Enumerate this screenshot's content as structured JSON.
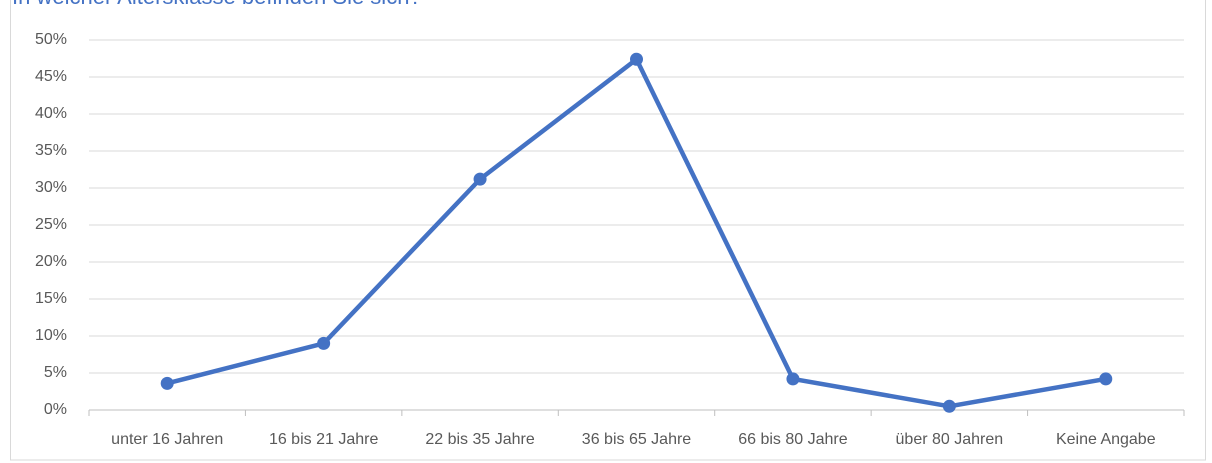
{
  "chart_data": {
    "type": "line",
    "title": "In welcher Altersklasse befinden Sie sich?",
    "categories": [
      "unter 16 Jahren",
      "16 bis 21 Jahre",
      "22 bis 35 Jahre",
      "36 bis 65 Jahre",
      "66 bis 80 Jahre",
      "über 80 Jahren",
      "Keine Angabe"
    ],
    "series": [
      {
        "color": "#4472c4",
        "values": [
          3.6,
          9,
          31.2,
          47.4,
          4.2,
          0.5,
          4.2
        ]
      }
    ],
    "ylim": [
      0,
      50
    ],
    "yticks": [
      {
        "value": 0,
        "label": "0%"
      },
      {
        "value": 5,
        "label": "5%"
      },
      {
        "value": 10,
        "label": "10%"
      },
      {
        "value": 15,
        "label": "15%"
      },
      {
        "value": 20,
        "label": "20%"
      },
      {
        "value": 25,
        "label": "25%"
      },
      {
        "value": 30,
        "label": "30%"
      },
      {
        "value": 35,
        "label": "35%"
      },
      {
        "value": 40,
        "label": "40%"
      },
      {
        "value": 45,
        "label": "45%"
      },
      {
        "value": 50,
        "label": "50%"
      }
    ],
    "grid": true
  }
}
